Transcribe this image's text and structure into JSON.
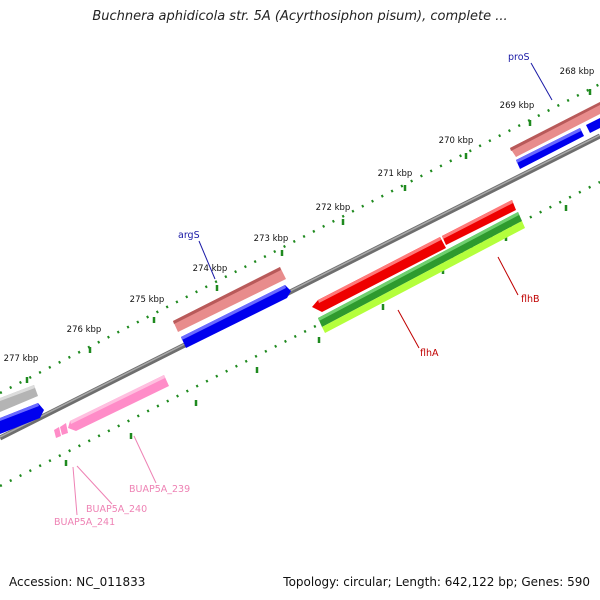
{
  "title": "Buchnera aphidicola str. 5A (Acyrthosiphon pisum), complete ...",
  "footer": {
    "accession": "Accession: NC_011833",
    "summary": "Topology: circular; Length: 642,122 bp; Genes: 590"
  },
  "ticks": [
    {
      "label": "268 kbp"
    },
    {
      "label": "269 kbp"
    },
    {
      "label": "270 kbp"
    },
    {
      "label": "271 kbp"
    },
    {
      "label": "272 kbp"
    },
    {
      "label": "273 kbp"
    },
    {
      "label": "274 kbp"
    },
    {
      "label": "275 kbp"
    },
    {
      "label": "276 kbp"
    },
    {
      "label": "277 kbp"
    }
  ],
  "gene_labels": [
    {
      "name": "proS",
      "color": "#1a1aa6"
    },
    {
      "name": "argS",
      "color": "#1a1aa6"
    },
    {
      "name": "flhB",
      "color": "#c00000"
    },
    {
      "name": "flhA",
      "color": "#c00000"
    },
    {
      "name": "BUAP5A_239",
      "color": "#ee82b4"
    },
    {
      "name": "BUAP5A_240",
      "color": "#ee82b4"
    },
    {
      "name": "BUAP5A_241",
      "color": "#ee82b4"
    }
  ],
  "colors": {
    "backbone": "#808080",
    "tick": "#1f8a1f",
    "cds_forward": "#e88c8c",
    "cds_blue": "#0000ee",
    "gene_red": "#ee0000",
    "gene_green": "#2e9a2e",
    "gene_lime": "#b4ff3c",
    "gene_pink": "#ff8cc8",
    "gene_gray": "#b4b4b4"
  }
}
